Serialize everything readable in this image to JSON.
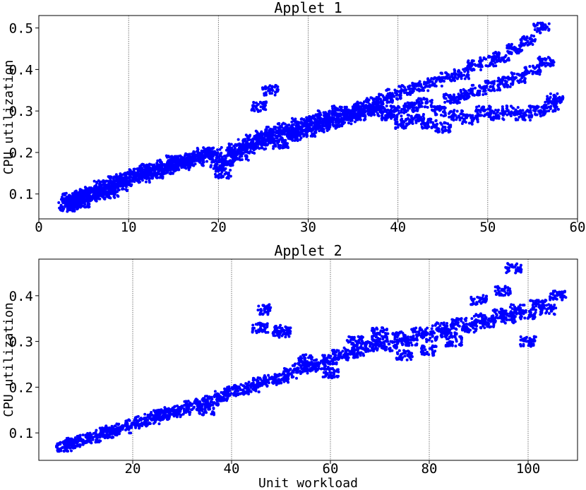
{
  "chart_data": [
    {
      "type": "scatter",
      "title": "Applet 1",
      "xlabel": "",
      "ylabel": "CPU utilization",
      "xlim": [
        0,
        60
      ],
      "ylim": [
        0.04,
        0.53
      ],
      "xticks": [
        "0",
        "10",
        "20",
        "30",
        "40",
        "50",
        "60"
      ],
      "yticks": [
        "0.1",
        "0.2",
        "0.3",
        "0.4",
        "0.5"
      ],
      "grid": "vertical dotted",
      "color": "#0000ff",
      "series": [
        {
          "points": [
            [
              3.1,
              0.07
            ],
            [
              3.4,
              0.09
            ],
            [
              3.8,
              0.08
            ],
            [
              4.2,
              0.09
            ],
            [
              4.6,
              0.1
            ],
            [
              5,
              0.09
            ],
            [
              5.5,
              0.1
            ],
            [
              6,
              0.11
            ],
            [
              6.5,
              0.1
            ],
            [
              7,
              0.12
            ],
            [
              7.5,
              0.11
            ],
            [
              8,
              0.12
            ],
            [
              8.5,
              0.13
            ],
            [
              9,
              0.12
            ],
            [
              9.5,
              0.14
            ],
            [
              10,
              0.13
            ],
            [
              10.5,
              0.14
            ],
            [
              11,
              0.15
            ],
            [
              11.5,
              0.14
            ],
            [
              12,
              0.15
            ],
            [
              12.5,
              0.16
            ],
            [
              13,
              0.15
            ],
            [
              13.5,
              0.16
            ],
            [
              14,
              0.17
            ],
            [
              14.5,
              0.16
            ],
            [
              15,
              0.17
            ],
            [
              15.5,
              0.18
            ],
            [
              16,
              0.17
            ],
            [
              16.5,
              0.18
            ],
            [
              17,
              0.19
            ],
            [
              17.5,
              0.18
            ],
            [
              18,
              0.19
            ],
            [
              18.5,
              0.2
            ],
            [
              19,
              0.19
            ],
            [
              19.5,
              0.2
            ],
            [
              20,
              0.17
            ],
            [
              20.5,
              0.15
            ],
            [
              21,
              0.18
            ],
            [
              21.5,
              0.2
            ],
            [
              22,
              0.21
            ],
            [
              22.5,
              0.19
            ],
            [
              23,
              0.22
            ],
            [
              23.5,
              0.21
            ],
            [
              24,
              0.23
            ],
            [
              24.5,
              0.22
            ],
            [
              25,
              0.24
            ],
            [
              25.5,
              0.23
            ],
            [
              26,
              0.25
            ],
            [
              26.5,
              0.24
            ],
            [
              27,
              0.22
            ],
            [
              27.5,
              0.26
            ],
            [
              28,
              0.25
            ],
            [
              28.5,
              0.24
            ],
            [
              29,
              0.27
            ],
            [
              29.5,
              0.26
            ],
            [
              30,
              0.25
            ],
            [
              30.5,
              0.28
            ],
            [
              31,
              0.27
            ],
            [
              31.5,
              0.26
            ],
            [
              32,
              0.29
            ],
            [
              32.5,
              0.28
            ],
            [
              33,
              0.27
            ],
            [
              33.5,
              0.3
            ],
            [
              34,
              0.29
            ],
            [
              34.5,
              0.28
            ],
            [
              35,
              0.3
            ],
            [
              35.5,
              0.29
            ],
            [
              36,
              0.31
            ],
            [
              36.5,
              0.3
            ],
            [
              37,
              0.32
            ],
            [
              37.5,
              0.31
            ],
            [
              38,
              0.3
            ],
            [
              38.5,
              0.33
            ],
            [
              39,
              0.29
            ],
            [
              39.5,
              0.34
            ],
            [
              40,
              0.3
            ],
            [
              40.5,
              0.27
            ],
            [
              41,
              0.35
            ],
            [
              41.5,
              0.31
            ],
            [
              42,
              0.28
            ],
            [
              42.5,
              0.36
            ],
            [
              43,
              0.32
            ],
            [
              43.5,
              0.27
            ],
            [
              44,
              0.37
            ],
            [
              44.5,
              0.3
            ],
            [
              45,
              0.26
            ],
            [
              45.5,
              0.38
            ],
            [
              46,
              0.33
            ],
            [
              46.5,
              0.29
            ],
            [
              47,
              0.39
            ],
            [
              47.5,
              0.34
            ],
            [
              48,
              0.28
            ],
            [
              48.5,
              0.41
            ],
            [
              49,
              0.35
            ],
            [
              49.5,
              0.3
            ],
            [
              50,
              0.42
            ],
            [
              50.5,
              0.36
            ],
            [
              51,
              0.29
            ],
            [
              51.5,
              0.43
            ],
            [
              52,
              0.37
            ],
            [
              52.5,
              0.3
            ],
            [
              53,
              0.45
            ],
            [
              53.5,
              0.38
            ],
            [
              54,
              0.29
            ],
            [
              54.5,
              0.47
            ],
            [
              55,
              0.4
            ],
            [
              55.5,
              0.3
            ],
            [
              56,
              0.5
            ],
            [
              56.5,
              0.42
            ],
            [
              57,
              0.31
            ],
            [
              57.5,
              0.33
            ],
            [
              25.8,
              0.35
            ],
            [
              24.5,
              0.31
            ],
            [
              15,
              0.18
            ],
            [
              12,
              0.16
            ],
            [
              8,
              0.1
            ],
            [
              5,
              0.08
            ],
            [
              3.5,
              0.075
            ],
            [
              4,
              0.085
            ],
            [
              6,
              0.095
            ]
          ]
        }
      ]
    },
    {
      "type": "scatter",
      "title": "Applet 2",
      "xlabel": "Unit workload",
      "ylabel": "CPU utilization",
      "xlim": [
        1,
        110
      ],
      "ylim": [
        0.04,
        0.48
      ],
      "xticks": [
        "20",
        "40",
        "60",
        "80",
        "100"
      ],
      "yticks": [
        "0.1",
        "0.2",
        "0.3",
        "0.4"
      ],
      "grid": "vertical dotted",
      "color": "#0000ff",
      "series": [
        {
          "points": [
            [
              6,
              0.07
            ],
            [
              7,
              0.075
            ],
            [
              8,
              0.08
            ],
            [
              10,
              0.085
            ],
            [
              12,
              0.09
            ],
            [
              14,
              0.1
            ],
            [
              16,
              0.105
            ],
            [
              18,
              0.11
            ],
            [
              20,
              0.12
            ],
            [
              22,
              0.125
            ],
            [
              24,
              0.13
            ],
            [
              26,
              0.14
            ],
            [
              28,
              0.145
            ],
            [
              30,
              0.15
            ],
            [
              32,
              0.16
            ],
            [
              34,
              0.165
            ],
            [
              36,
              0.17
            ],
            [
              38,
              0.18
            ],
            [
              40,
              0.19
            ],
            [
              42,
              0.195
            ],
            [
              44,
              0.2
            ],
            [
              46,
              0.21
            ],
            [
              48,
              0.215
            ],
            [
              50,
              0.22
            ],
            [
              52,
              0.23
            ],
            [
              54,
              0.24
            ],
            [
              56,
              0.245
            ],
            [
              58,
              0.25
            ],
            [
              60,
              0.26
            ],
            [
              62,
              0.27
            ],
            [
              64,
              0.275
            ],
            [
              66,
              0.28
            ],
            [
              68,
              0.29
            ],
            [
              70,
              0.3
            ],
            [
              72,
              0.29
            ],
            [
              74,
              0.31
            ],
            [
              76,
              0.3
            ],
            [
              78,
              0.32
            ],
            [
              80,
              0.31
            ],
            [
              82,
              0.33
            ],
            [
              84,
              0.32
            ],
            [
              86,
              0.34
            ],
            [
              88,
              0.33
            ],
            [
              90,
              0.35
            ],
            [
              92,
              0.34
            ],
            [
              94,
              0.36
            ],
            [
              96,
              0.35
            ],
            [
              98,
              0.37
            ],
            [
              100,
              0.36
            ],
            [
              102,
              0.38
            ],
            [
              104,
              0.37
            ],
            [
              106,
              0.4
            ],
            [
              97,
              0.46
            ],
            [
              100,
              0.3
            ],
            [
              95,
              0.41
            ],
            [
              90,
              0.39
            ],
            [
              85,
              0.3
            ],
            [
              80,
              0.28
            ],
            [
              75,
              0.27
            ],
            [
              46.5,
              0.37
            ],
            [
              45.8,
              0.33
            ],
            [
              50,
              0.32
            ],
            [
              50.3,
              0.325
            ],
            [
              60,
              0.23
            ],
            [
              65,
              0.3
            ],
            [
              70,
              0.32
            ],
            [
              55,
              0.26
            ],
            [
              35,
              0.15
            ],
            [
              25,
              0.14
            ],
            [
              15,
              0.1
            ]
          ]
        }
      ]
    }
  ]
}
